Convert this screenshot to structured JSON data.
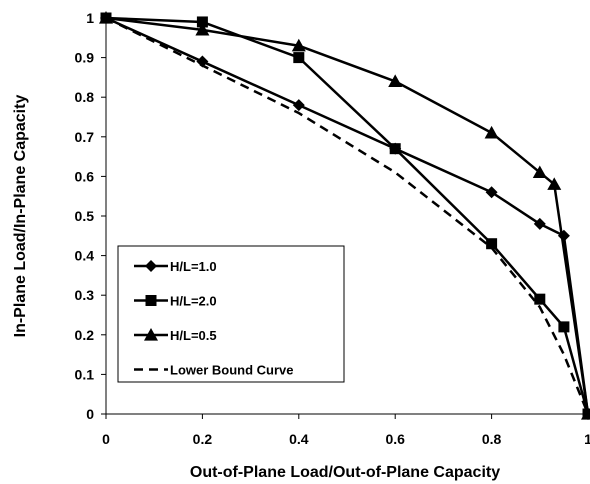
{
  "chart_data": {
    "type": "line",
    "xlabel": "Out-of-Plane Load/Out-of-Plane Capacity",
    "ylabel": "In-Plane Load/In-Plane Capacity",
    "xlim": [
      0,
      1
    ],
    "ylim": [
      0,
      1
    ],
    "xticks": [
      "0",
      "0.2",
      "0.4",
      "0.6",
      "0.8",
      "1"
    ],
    "xtick_values": [
      0,
      0.2,
      0.4,
      0.6,
      0.8,
      1
    ],
    "yticks": [
      "0",
      "0.1",
      "0.2",
      "0.3",
      "0.4",
      "0.5",
      "0.6",
      "0.7",
      "0.8",
      "0.9",
      "1"
    ],
    "ytick_values": [
      0,
      0.1,
      0.2,
      0.3,
      0.4,
      0.5,
      0.6,
      0.7,
      0.8,
      0.9,
      1
    ],
    "grid": false,
    "legend_position": "bottom-left",
    "series": [
      {
        "name": "H/L=1.0",
        "marker": "diamond",
        "style": "solid",
        "x": [
          0,
          0.2,
          0.4,
          0.6,
          0.8,
          0.9,
          0.95,
          1
        ],
        "y": [
          1,
          0.89,
          0.78,
          0.67,
          0.56,
          0.48,
          0.45,
          0
        ]
      },
      {
        "name": "H/L=2.0",
        "marker": "square",
        "style": "solid",
        "x": [
          0,
          0.2,
          0.4,
          0.6,
          0.8,
          0.9,
          0.95,
          1
        ],
        "y": [
          1,
          0.99,
          0.9,
          0.67,
          0.43,
          0.29,
          0.22,
          0
        ]
      },
      {
        "name": "H/L=0.5",
        "marker": "triangle",
        "style": "solid",
        "x": [
          0,
          0.2,
          0.4,
          0.6,
          0.8,
          0.9,
          0.93,
          1
        ],
        "y": [
          1,
          0.97,
          0.93,
          0.84,
          0.71,
          0.61,
          0.58,
          0
        ]
      },
      {
        "name": "Lower Bound Curve",
        "marker": "none",
        "style": "dashed",
        "x": [
          0,
          0.2,
          0.4,
          0.6,
          0.8,
          0.9,
          0.95,
          1
        ],
        "y": [
          1,
          0.88,
          0.76,
          0.61,
          0.42,
          0.27,
          0.15,
          0
        ]
      }
    ]
  }
}
